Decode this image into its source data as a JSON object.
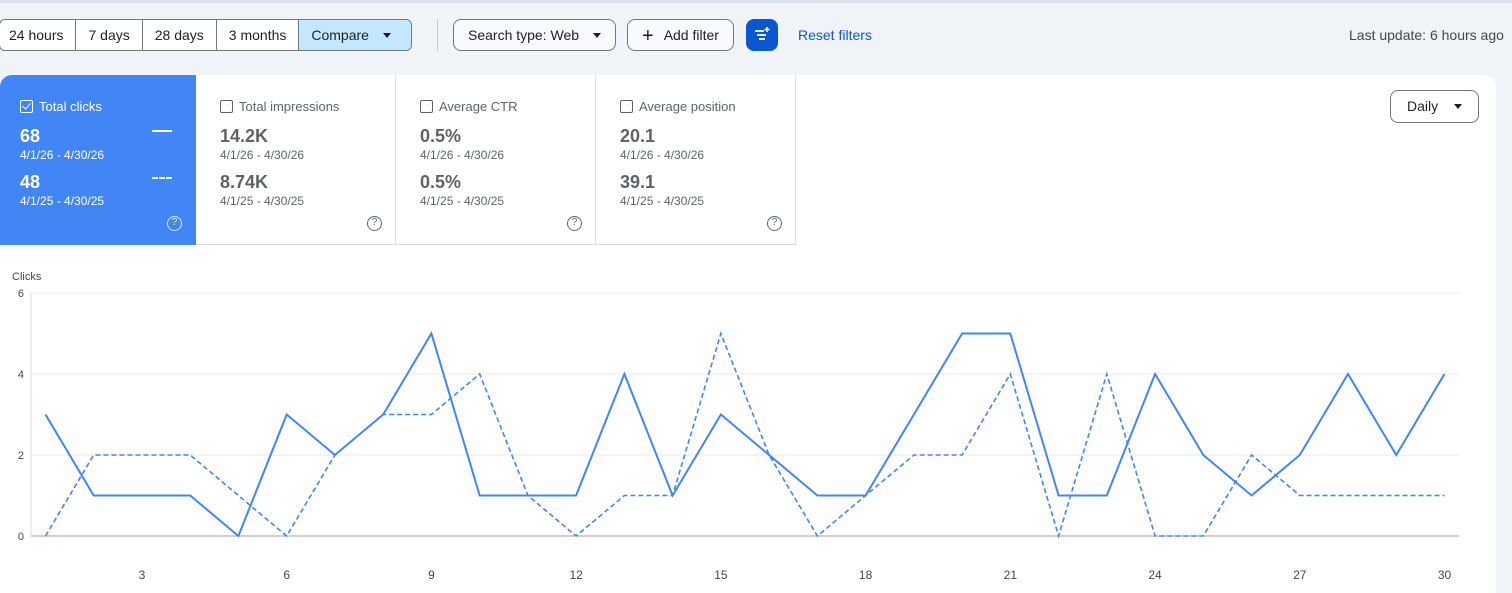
{
  "toolbar": {
    "date_ranges": [
      "24 hours",
      "7 days",
      "28 days",
      "3 months"
    ],
    "compare_label": "Compare",
    "search_type_label": "Search type: Web",
    "add_filter_label": "Add filter",
    "reset_filters_label": "Reset filters",
    "last_update": "Last update: 6 hours ago"
  },
  "metrics": [
    {
      "label": "Total clicks",
      "checked": true,
      "value_current": "68",
      "range_current": "4/1/26 - 4/30/26",
      "value_previous": "48",
      "range_previous": "4/1/25 - 4/30/25",
      "help": "?"
    },
    {
      "label": "Total impressions",
      "checked": false,
      "value_current": "14.2K",
      "range_current": "4/1/26 - 4/30/26",
      "value_previous": "8.74K",
      "range_previous": "4/1/25 - 4/30/25",
      "help": "?"
    },
    {
      "label": "Average CTR",
      "checked": false,
      "value_current": "0.5%",
      "range_current": "4/1/26 - 4/30/26",
      "value_previous": "0.5%",
      "range_previous": "4/1/25 - 4/30/25",
      "help": "?"
    },
    {
      "label": "Average position",
      "checked": false,
      "value_current": "20.1",
      "range_current": "4/1/26 - 4/30/26",
      "value_previous": "39.1",
      "range_previous": "4/1/25 - 4/30/25",
      "help": "?"
    }
  ],
  "granularity": "Daily",
  "colors": {
    "accent": "#4285f4",
    "primary_button": "#0b57d0",
    "selected_segment": "#c2e7ff"
  },
  "chart_data": {
    "type": "line",
    "ylabel": "Clicks",
    "ylim": [
      0,
      6
    ],
    "yticks": [
      0,
      2,
      4,
      6
    ],
    "xlim": [
      1,
      30
    ],
    "xticks": [
      3,
      6,
      9,
      12,
      15,
      18,
      21,
      24,
      27,
      30
    ],
    "x": [
      1,
      2,
      3,
      4,
      5,
      6,
      7,
      8,
      9,
      10,
      11,
      12,
      13,
      14,
      15,
      16,
      17,
      18,
      19,
      20,
      21,
      22,
      23,
      24,
      25,
      26,
      27,
      28,
      29,
      30
    ],
    "grid": true,
    "series": [
      {
        "name": "4/1/26 - 4/30/26",
        "style": "solid",
        "color": "#4285f4",
        "values": [
          3,
          1,
          1,
          1,
          0,
          3,
          2,
          3,
          5,
          1,
          1,
          1,
          4,
          1,
          3,
          2,
          1,
          1,
          3,
          5,
          5,
          1,
          1,
          4,
          2,
          1,
          2,
          4,
          2,
          4
        ]
      },
      {
        "name": "4/1/25 - 4/30/25",
        "style": "dashed",
        "color": "#4285f4",
        "values": [
          0,
          2,
          2,
          2,
          1,
          0,
          2,
          3,
          3,
          4,
          1,
          0,
          1,
          1,
          5,
          2,
          0,
          1,
          2,
          2,
          4,
          0,
          4,
          0,
          0,
          2,
          1,
          1,
          1,
          1
        ]
      }
    ]
  }
}
